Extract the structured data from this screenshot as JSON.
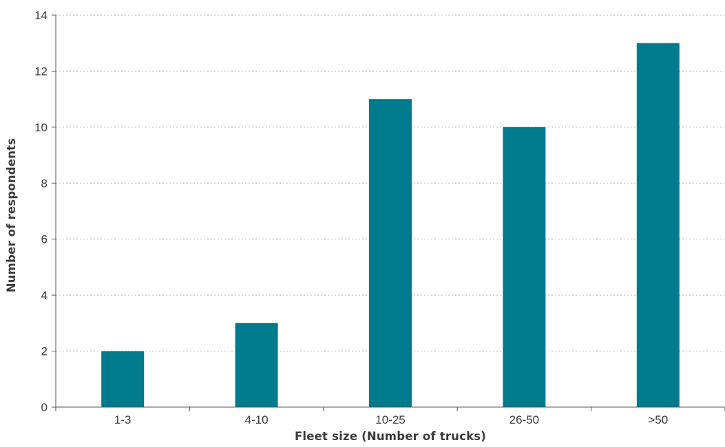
{
  "chart_data": {
    "type": "bar",
    "title": "",
    "xlabel": "Fleet size (Number of trucks)",
    "ylabel": "Number of respondents",
    "categories": [
      "1-3",
      "4-10",
      "10-25",
      "26-50",
      ">50"
    ],
    "values": [
      2,
      3,
      11,
      10,
      13
    ],
    "ylim": [
      0,
      14
    ],
    "yticks": [
      0,
      2,
      4,
      6,
      8,
      10,
      12,
      14
    ],
    "grid": "horizontal dotted",
    "legend": "none",
    "bar_color": "#007a8d",
    "grid_color": "#b5b5b5",
    "axis_color": "#555555"
  }
}
